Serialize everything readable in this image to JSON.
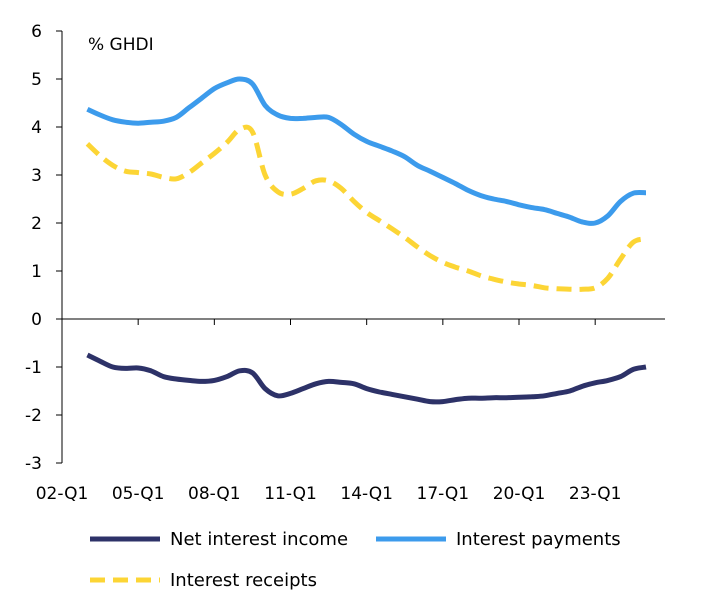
{
  "chart_data": {
    "type": "line",
    "unit_label": "% GHDI",
    "ylim": [
      -3,
      6
    ],
    "yticks": [
      6,
      5,
      4,
      3,
      2,
      1,
      0,
      -1,
      -2,
      -3
    ],
    "xlim": [
      2002.0,
      2025.75
    ],
    "xtick_labels": [
      "02-Q1",
      "05-Q1",
      "08-Q1",
      "11-Q1",
      "14-Q1",
      "17-Q1",
      "20-Q1",
      "23-Q1"
    ],
    "xtick_values": [
      2002,
      2005,
      2008,
      2011,
      2014,
      2017,
      2020,
      2023
    ],
    "grid": false,
    "legend_position": "bottom",
    "series": [
      {
        "name": "Net interest income",
        "color": "#2d3268",
        "dash": "solid",
        "points": [
          [
            2003.0,
            -0.75
          ],
          [
            2003.5,
            -0.88
          ],
          [
            2004.0,
            -1.0
          ],
          [
            2004.5,
            -1.03
          ],
          [
            2005.0,
            -1.02
          ],
          [
            2005.5,
            -1.08
          ],
          [
            2006.0,
            -1.2
          ],
          [
            2006.5,
            -1.25
          ],
          [
            2007.0,
            -1.28
          ],
          [
            2007.5,
            -1.3
          ],
          [
            2008.0,
            -1.28
          ],
          [
            2008.5,
            -1.2
          ],
          [
            2009.0,
            -1.08
          ],
          [
            2009.5,
            -1.12
          ],
          [
            2010.0,
            -1.45
          ],
          [
            2010.5,
            -1.6
          ],
          [
            2011.0,
            -1.55
          ],
          [
            2011.5,
            -1.45
          ],
          [
            2012.0,
            -1.35
          ],
          [
            2012.5,
            -1.3
          ],
          [
            2013.0,
            -1.32
          ],
          [
            2013.5,
            -1.35
          ],
          [
            2014.0,
            -1.45
          ],
          [
            2014.5,
            -1.52
          ],
          [
            2015.0,
            -1.57
          ],
          [
            2015.5,
            -1.62
          ],
          [
            2016.0,
            -1.67
          ],
          [
            2016.5,
            -1.72
          ],
          [
            2017.0,
            -1.72
          ],
          [
            2017.5,
            -1.68
          ],
          [
            2018.0,
            -1.65
          ],
          [
            2018.5,
            -1.65
          ],
          [
            2019.0,
            -1.64
          ],
          [
            2019.5,
            -1.64
          ],
          [
            2020.0,
            -1.63
          ],
          [
            2020.5,
            -1.62
          ],
          [
            2021.0,
            -1.6
          ],
          [
            2021.5,
            -1.55
          ],
          [
            2022.0,
            -1.5
          ],
          [
            2022.5,
            -1.4
          ],
          [
            2023.0,
            -1.33
          ],
          [
            2023.5,
            -1.28
          ],
          [
            2024.0,
            -1.2
          ],
          [
            2024.5,
            -1.05
          ],
          [
            2025.0,
            -1.0
          ]
        ]
      },
      {
        "name": "Interest payments",
        "color": "#3c9bec",
        "dash": "solid",
        "points": [
          [
            2003.0,
            4.37
          ],
          [
            2003.5,
            4.25
          ],
          [
            2004.0,
            4.15
          ],
          [
            2004.5,
            4.1
          ],
          [
            2005.0,
            4.08
          ],
          [
            2005.5,
            4.1
          ],
          [
            2006.0,
            4.12
          ],
          [
            2006.5,
            4.2
          ],
          [
            2007.0,
            4.4
          ],
          [
            2007.5,
            4.6
          ],
          [
            2008.0,
            4.8
          ],
          [
            2008.5,
            4.92
          ],
          [
            2009.0,
            5.0
          ],
          [
            2009.5,
            4.9
          ],
          [
            2010.0,
            4.45
          ],
          [
            2010.5,
            4.25
          ],
          [
            2011.0,
            4.18
          ],
          [
            2011.5,
            4.18
          ],
          [
            2012.0,
            4.2
          ],
          [
            2012.5,
            4.2
          ],
          [
            2013.0,
            4.05
          ],
          [
            2013.5,
            3.85
          ],
          [
            2014.0,
            3.7
          ],
          [
            2014.5,
            3.6
          ],
          [
            2015.0,
            3.5
          ],
          [
            2015.5,
            3.38
          ],
          [
            2016.0,
            3.2
          ],
          [
            2016.5,
            3.08
          ],
          [
            2017.0,
            2.95
          ],
          [
            2017.5,
            2.82
          ],
          [
            2018.0,
            2.68
          ],
          [
            2018.5,
            2.57
          ],
          [
            2019.0,
            2.5
          ],
          [
            2019.5,
            2.45
          ],
          [
            2020.0,
            2.38
          ],
          [
            2020.5,
            2.32
          ],
          [
            2021.0,
            2.28
          ],
          [
            2021.5,
            2.2
          ],
          [
            2022.0,
            2.12
          ],
          [
            2022.5,
            2.02
          ],
          [
            2023.0,
            2.0
          ],
          [
            2023.5,
            2.15
          ],
          [
            2024.0,
            2.45
          ],
          [
            2024.5,
            2.62
          ],
          [
            2025.0,
            2.63
          ]
        ]
      },
      {
        "name": "Interest receipts",
        "color": "#fcd535",
        "dash": "dashed",
        "points": [
          [
            2003.0,
            3.65
          ],
          [
            2003.5,
            3.4
          ],
          [
            2004.0,
            3.2
          ],
          [
            2004.5,
            3.08
          ],
          [
            2005.0,
            3.05
          ],
          [
            2005.5,
            3.02
          ],
          [
            2006.0,
            2.95
          ],
          [
            2006.5,
            2.92
          ],
          [
            2007.0,
            3.05
          ],
          [
            2007.5,
            3.25
          ],
          [
            2008.0,
            3.45
          ],
          [
            2008.5,
            3.68
          ],
          [
            2009.0,
            3.95
          ],
          [
            2009.5,
            3.9
          ],
          [
            2010.0,
            3.0
          ],
          [
            2010.5,
            2.65
          ],
          [
            2011.0,
            2.6
          ],
          [
            2011.5,
            2.72
          ],
          [
            2012.0,
            2.88
          ],
          [
            2012.5,
            2.88
          ],
          [
            2013.0,
            2.72
          ],
          [
            2013.5,
            2.45
          ],
          [
            2014.0,
            2.22
          ],
          [
            2014.5,
            2.05
          ],
          [
            2015.0,
            1.88
          ],
          [
            2015.5,
            1.7
          ],
          [
            2016.0,
            1.5
          ],
          [
            2016.5,
            1.32
          ],
          [
            2017.0,
            1.18
          ],
          [
            2017.5,
            1.08
          ],
          [
            2018.0,
            1.0
          ],
          [
            2018.5,
            0.9
          ],
          [
            2019.0,
            0.83
          ],
          [
            2019.5,
            0.77
          ],
          [
            2020.0,
            0.73
          ],
          [
            2020.5,
            0.7
          ],
          [
            2021.0,
            0.65
          ],
          [
            2021.5,
            0.63
          ],
          [
            2022.0,
            0.62
          ],
          [
            2022.5,
            0.62
          ],
          [
            2023.0,
            0.65
          ],
          [
            2023.5,
            0.85
          ],
          [
            2024.0,
            1.25
          ],
          [
            2024.5,
            1.6
          ],
          [
            2025.0,
            1.67
          ]
        ]
      }
    ]
  }
}
